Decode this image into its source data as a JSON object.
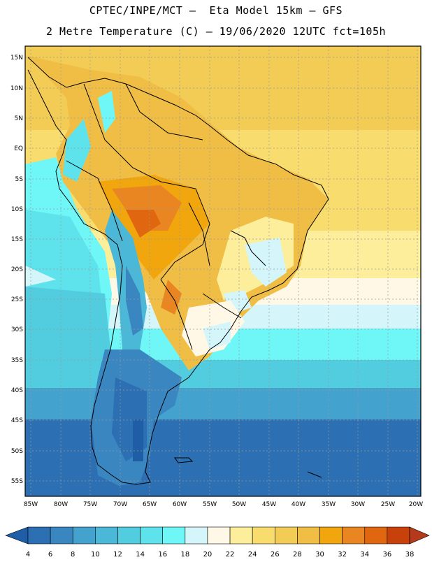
{
  "header": {
    "line1": "CPTEC/INPE/MCT –  Eta Model 15km – GFS",
    "line2": "2 Metre Temperature (C) – 19/06/2020 12UTC fct=105h"
  },
  "map": {
    "lat_labels": [
      "15N",
      "10N",
      "5N",
      "EQ",
      "5S",
      "10S",
      "15S",
      "20S",
      "25S",
      "30S",
      "35S",
      "40S",
      "45S",
      "50S",
      "55S"
    ],
    "lon_labels": [
      "85W",
      "80W",
      "75W",
      "70W",
      "65W",
      "60W",
      "55W",
      "50W",
      "45W",
      "40W",
      "35W",
      "30W",
      "25W",
      "20W"
    ]
  },
  "legend": {
    "ticks": [
      "4",
      "6",
      "8",
      "10",
      "12",
      "14",
      "16",
      "18",
      "20",
      "22",
      "24",
      "26",
      "28",
      "30",
      "32",
      "34",
      "36",
      "38"
    ],
    "colors": [
      "#1f5ea6",
      "#2c6fb2",
      "#3a86c0",
      "#44a2cf",
      "#4cb8d8",
      "#52cde0",
      "#5ee3ec",
      "#6ef7f6",
      "#d4f6fb",
      "#fff8e6",
      "#fcee9a",
      "#f8dd6e",
      "#f3cc55",
      "#f0be45",
      "#f2a60e",
      "#ea8622",
      "#e0660f",
      "#c9410a",
      "#b43a1b"
    ]
  }
}
